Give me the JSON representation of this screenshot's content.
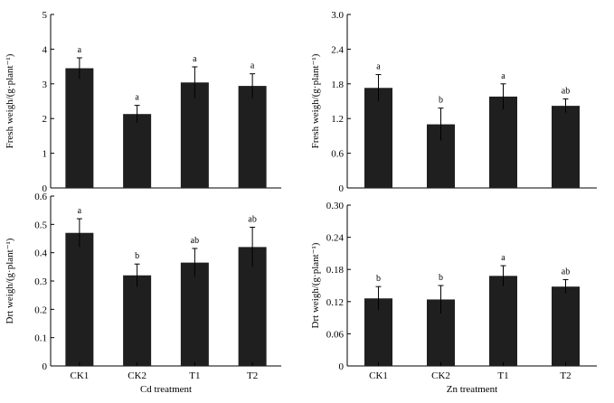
{
  "chart_data": [
    {
      "type": "bar",
      "panel": "top-left",
      "categories": [
        "CK1",
        "CK2",
        "T1",
        "T2"
      ],
      "values": [
        3.45,
        2.13,
        3.04,
        2.94
      ],
      "errors": [
        0.3,
        0.25,
        0.45,
        0.35
      ],
      "letters": [
        "a",
        "a",
        "a",
        "a"
      ],
      "ylabel": "Fresh weigh/(g·plant⁻¹)",
      "xlabel": "",
      "ylim": [
        0,
        5
      ],
      "yticks": [
        "0",
        "1",
        "2",
        "3",
        "4",
        "5"
      ],
      "show_categories": false
    },
    {
      "type": "bar",
      "panel": "top-right",
      "categories": [
        "CK1",
        "CK2",
        "T1",
        "T2"
      ],
      "values": [
        1.73,
        1.1,
        1.58,
        1.42
      ],
      "errors": [
        0.23,
        0.28,
        0.22,
        0.12
      ],
      "letters": [
        "a",
        "b",
        "a",
        "ab"
      ],
      "ylabel": "Fresh weigh/(g·plant⁻¹)",
      "xlabel": "",
      "ylim": [
        0,
        3.0
      ],
      "yticks": [
        "0",
        "0.6",
        "1.2",
        "1.8",
        "2.4",
        "3.0"
      ],
      "show_categories": false
    },
    {
      "type": "bar",
      "panel": "bottom-left",
      "categories": [
        "CK1",
        "CK2",
        "T1",
        "T2"
      ],
      "values": [
        0.47,
        0.32,
        0.365,
        0.42
      ],
      "errors": [
        0.05,
        0.04,
        0.05,
        0.07
      ],
      "letters": [
        "a",
        "b",
        "ab",
        "ab"
      ],
      "ylabel": "Drt weigh/(g·plant⁻¹)",
      "xlabel": "Cd treatment",
      "ylim": [
        0,
        0.6
      ],
      "yticks": [
        "0",
        "0.1",
        "0.2",
        "0.3",
        "0.4",
        "0.5",
        "0.6"
      ],
      "show_categories": true
    },
    {
      "type": "bar",
      "panel": "bottom-right",
      "categories": [
        "CK1",
        "CK2",
        "T1",
        "T2"
      ],
      "values": [
        0.126,
        0.124,
        0.168,
        0.148
      ],
      "errors": [
        0.022,
        0.026,
        0.019,
        0.013
      ],
      "letters": [
        "b",
        "b",
        "a",
        "ab"
      ],
      "ylabel": "Drt weigh/(g·plant⁻¹)",
      "xlabel": "Zn treatment",
      "ylim": [
        0,
        0.3
      ],
      "yticks": [
        "0",
        "0.06",
        "0.12",
        "0.18",
        "0.24",
        "0.30"
      ],
      "show_categories": true
    }
  ]
}
